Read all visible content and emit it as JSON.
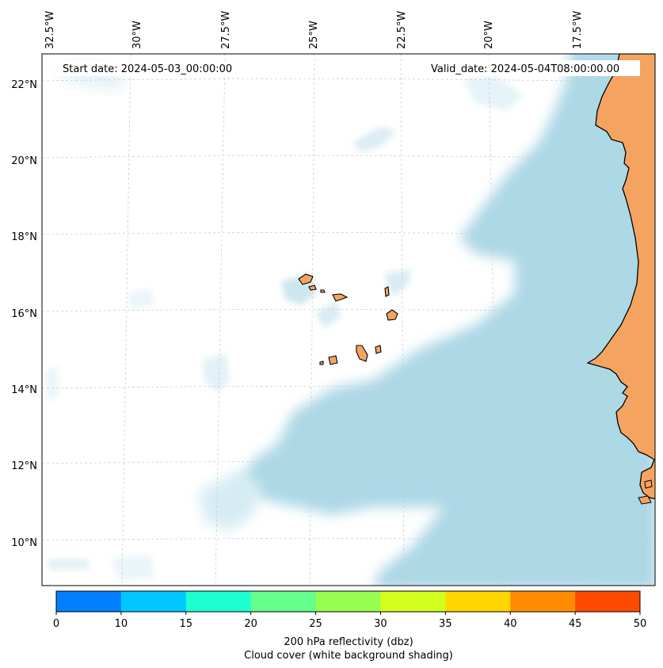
{
  "map": {
    "start_date": "Start date: 2024-05-03_00:00:00",
    "valid_date": "Valid_date: 2024-05-04T08:00:00.00",
    "lon_labels": [
      "32.5°W",
      "30°W",
      "27.5°W",
      "25°W",
      "22.5°W",
      "20°W",
      "17.5°W"
    ],
    "lat_labels": [
      "22°N",
      "20°N",
      "18°N",
      "16°N",
      "14°N",
      "12°N",
      "10°N"
    ],
    "colors": {
      "land": "#f4a460",
      "coast": "#000000",
      "cloud": "#add8e6",
      "grid": "#c8c8c8"
    }
  },
  "colorbar": {
    "ticks": [
      "0",
      "10",
      "15",
      "20",
      "25",
      "30",
      "35",
      "40",
      "45",
      "50"
    ],
    "colors": [
      "#0080ff",
      "#00c8ff",
      "#1effd2",
      "#64ff8c",
      "#96ff50",
      "#d2ff1e",
      "#ffd700",
      "#ff8c00",
      "#ff4b00"
    ],
    "label": "200 hPa reflectivity (dbz)",
    "sublabel": "Cloud cover (white background shading)"
  }
}
